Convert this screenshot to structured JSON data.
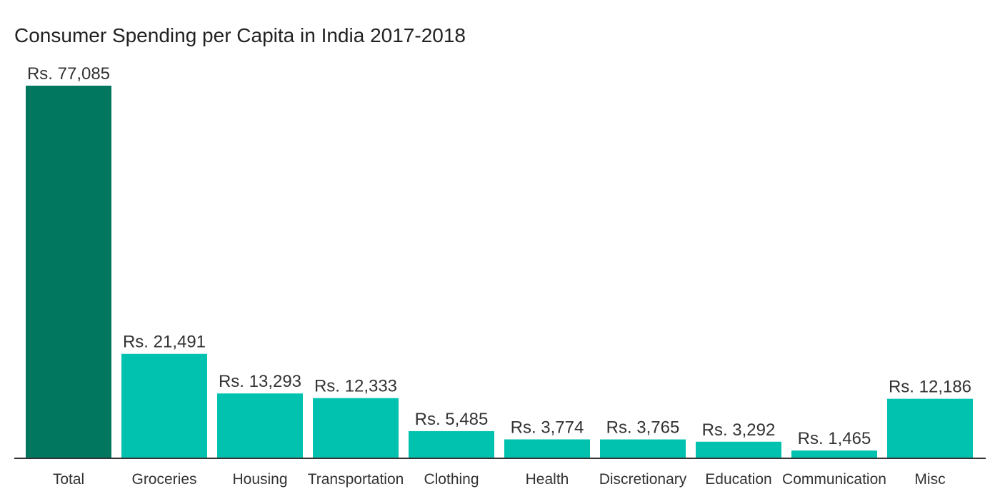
{
  "chart_data": {
    "type": "bar",
    "title": "Consumer Spending per Capita in India 2017-2018",
    "xlabel": "",
    "ylabel": "",
    "categories": [
      "Total",
      "Groceries",
      "Housing",
      "Transportation",
      "Clothing",
      "Health",
      "Discretionary",
      "Education",
      "Communication",
      "Misc"
    ],
    "values": [
      77085,
      21491,
      13293,
      12333,
      5485,
      3774,
      3765,
      3292,
      1465,
      12186
    ],
    "value_labels": [
      "Rs. 77,085",
      "Rs. 21,491",
      "Rs. 13,293",
      "Rs. 12,333",
      "Rs. 5,485",
      "Rs. 3,774",
      "Rs. 3,765",
      "Rs. 3,292",
      "Rs. 1,465",
      "Rs. 12,186"
    ],
    "ylim": [
      0,
      77085
    ],
    "grid": false,
    "colors": {
      "highlight": "#017760",
      "default": "#01c2ae"
    },
    "highlight_index": 0
  }
}
